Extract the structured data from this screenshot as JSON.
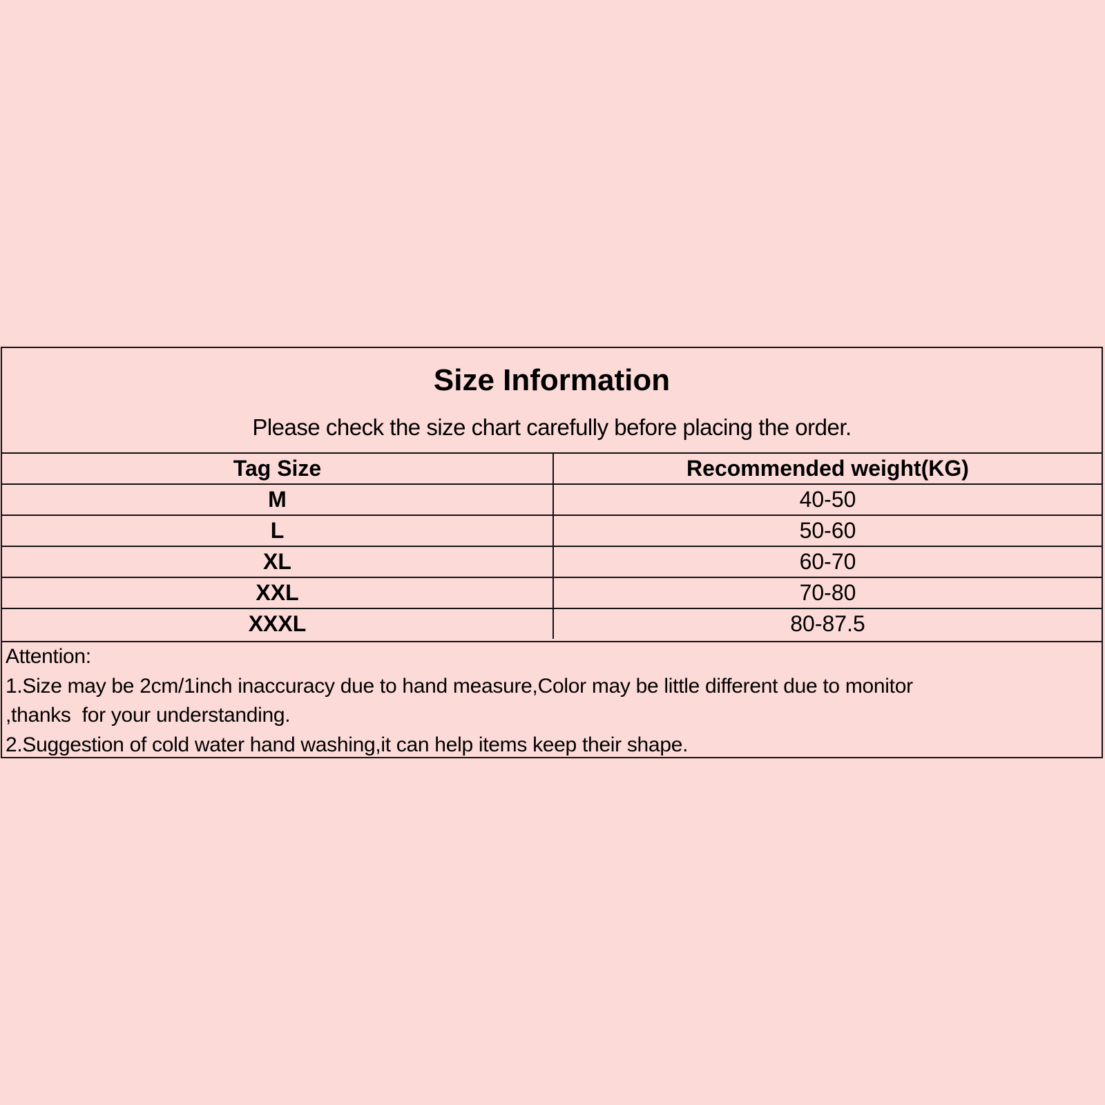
{
  "title": "Size Information",
  "subtitle": "Please check the size chart carefully before placing the order.",
  "table": {
    "headers": [
      "Tag Size",
      "Recommended weight(KG)"
    ],
    "rows": [
      [
        "M",
        "40-50"
      ],
      [
        "L",
        "50-60"
      ],
      [
        "XL",
        "60-70"
      ],
      [
        "XXL",
        "70-80"
      ],
      [
        "XXXL",
        "80-87.5"
      ]
    ]
  },
  "attention": {
    "heading": "Attention:",
    "lines": [
      "1.Size may be 2cm/1inch inaccuracy due to hand measure,Color may be little different due to monitor",
      ",thanks  for your understanding.",
      "2.Suggestion of cold water hand washing,it can help items keep their shape."
    ]
  },
  "colors": {
    "background": "#fcdad8",
    "border": "#111111"
  }
}
